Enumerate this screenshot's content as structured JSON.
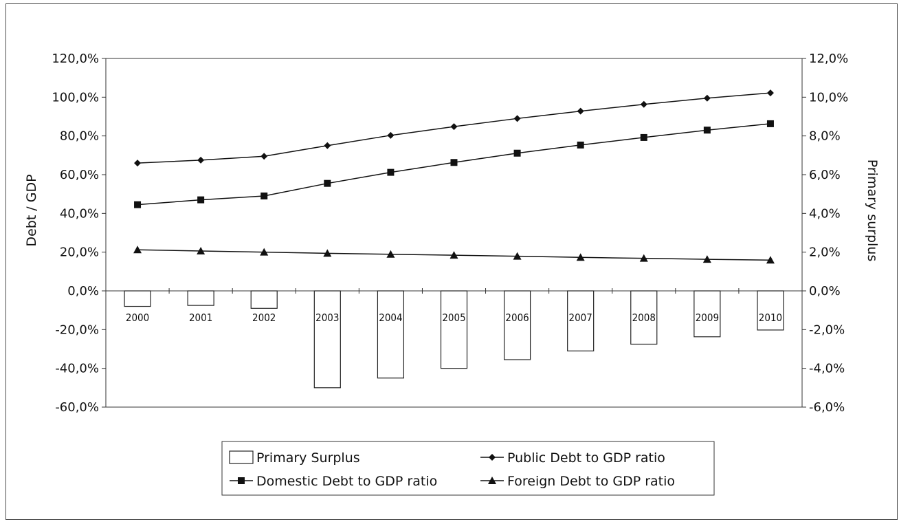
{
  "chart_data": {
    "type": "bar+line",
    "categories": [
      "2000",
      "2001",
      "2002",
      "2003",
      "2004",
      "2005",
      "2006",
      "2007",
      "2008",
      "2009",
      "2010"
    ],
    "ylabel_left": "Debt / GDP",
    "ylabel_right": "Primary surplus",
    "ylim_left": [
      -0.6,
      1.2
    ],
    "ylim_right": [
      -0.06,
      0.12
    ],
    "left_ticks": [
      {
        "value": 1.2,
        "label": "120,0%"
      },
      {
        "value": 1.0,
        "label": "100,0%"
      },
      {
        "value": 0.8,
        "label": "80,0%"
      },
      {
        "value": 0.6,
        "label": "60,0%"
      },
      {
        "value": 0.4,
        "label": "40,0%"
      },
      {
        "value": 0.2,
        "label": "20,0%"
      },
      {
        "value": 0.0,
        "label": "0,0%"
      },
      {
        "value": -0.2,
        "label": "-20,0%"
      },
      {
        "value": -0.4,
        "label": "-40,0%"
      },
      {
        "value": -0.6,
        "label": "-60,0%"
      }
    ],
    "right_ticks": [
      {
        "value": 0.12,
        "label": "12,0%"
      },
      {
        "value": 0.1,
        "label": "10,0%"
      },
      {
        "value": 0.08,
        "label": "8,0%"
      },
      {
        "value": 0.06,
        "label": "6,0%"
      },
      {
        "value": 0.04,
        "label": "4,0%"
      },
      {
        "value": 0.02,
        "label": "2,0%"
      },
      {
        "value": 0.0,
        "label": "0,0%"
      },
      {
        "value": -0.02,
        "label": "-2,0%"
      },
      {
        "value": -0.04,
        "label": "-4,0%"
      },
      {
        "value": -0.06,
        "label": "-6,0%"
      }
    ],
    "bars": {
      "name": "Primary Surplus",
      "axis": "right",
      "values": [
        -0.008,
        -0.0075,
        -0.009,
        -0.05,
        -0.045,
        -0.04,
        -0.0355,
        -0.031,
        -0.0275,
        -0.0237,
        -0.0202
      ]
    },
    "series": [
      {
        "name": "Public Debt to GDP ratio",
        "marker": "diamond",
        "axis": "left",
        "values": [
          0.66,
          0.675,
          0.695,
          0.75,
          0.803,
          0.848,
          0.89,
          0.928,
          0.963,
          0.995,
          1.022
        ]
      },
      {
        "name": "Domestic Debt to GDP ratio",
        "marker": "square",
        "axis": "left",
        "values": [
          0.445,
          0.47,
          0.49,
          0.555,
          0.612,
          0.663,
          0.711,
          0.753,
          0.792,
          0.83,
          0.863
        ]
      },
      {
        "name": "Foreign Debt to GDP ratio",
        "marker": "triangle",
        "axis": "left",
        "values": [
          0.212,
          0.206,
          0.2,
          0.194,
          0.189,
          0.184,
          0.179,
          0.173,
          0.168,
          0.163,
          0.159
        ]
      }
    ],
    "legend": {
      "placement": "bottom",
      "entries": [
        "Primary Surplus",
        "Public Debt to GDP ratio",
        "Domestic Debt to GDP ratio",
        "Foreign Debt to GDP ratio"
      ]
    },
    "grid": false
  }
}
